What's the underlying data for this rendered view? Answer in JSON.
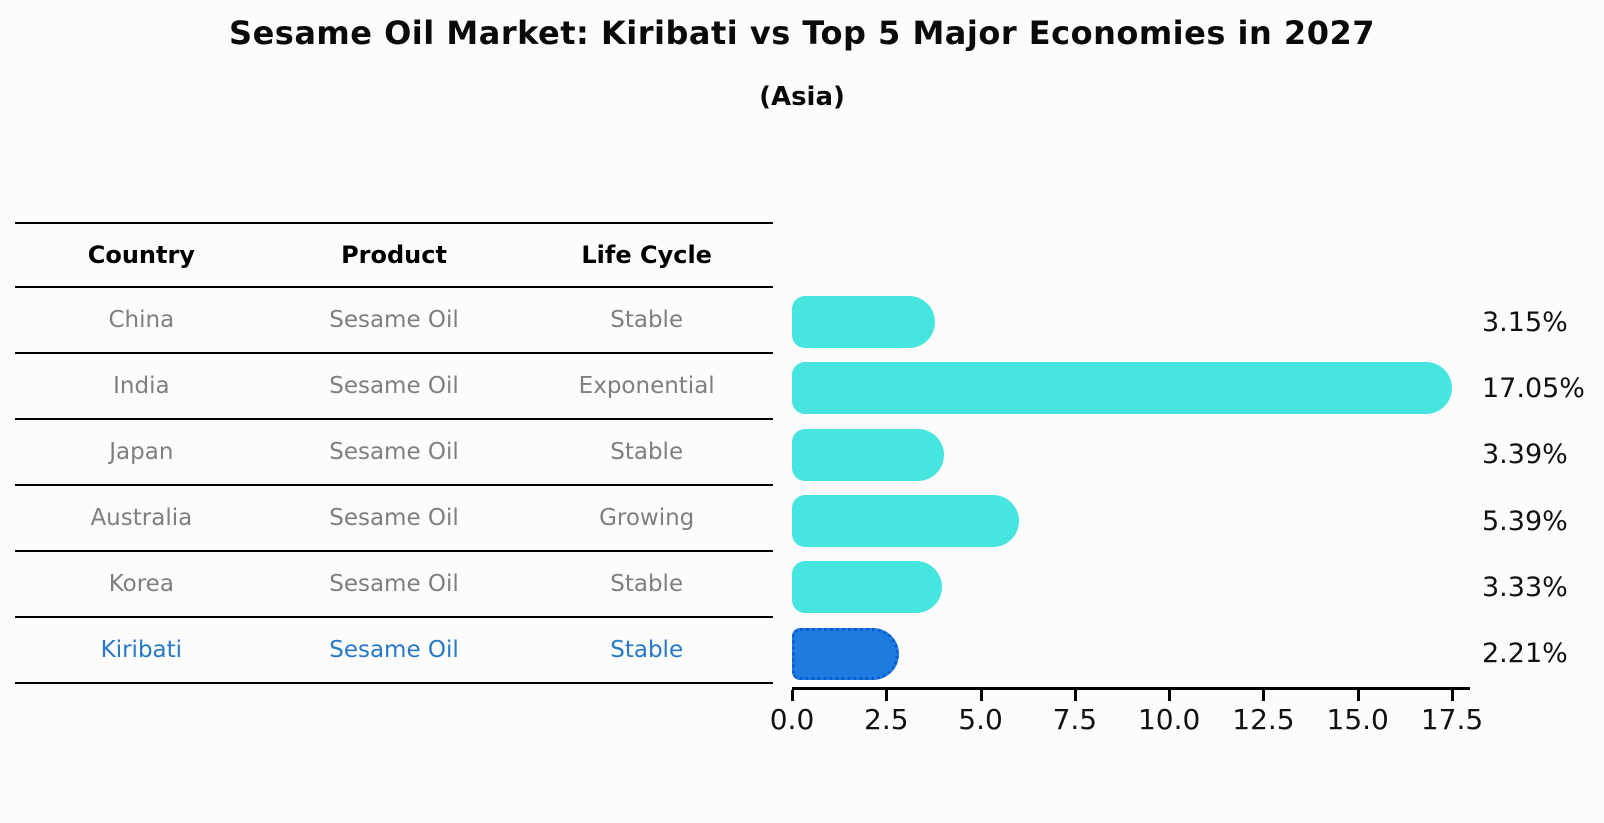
{
  "title": "Sesame Oil Market: Kiribati vs Top 5 Major Economies in 2027",
  "subtitle": "(Asia)",
  "table": {
    "headers": [
      "Country",
      "Product",
      "Life Cycle"
    ],
    "rows": [
      {
        "country": "China",
        "product": "Sesame Oil",
        "life_cycle": "Stable",
        "highlighted": false
      },
      {
        "country": "India",
        "product": "Sesame Oil",
        "life_cycle": "Exponential",
        "highlighted": false
      },
      {
        "country": "Japan",
        "product": "Sesame Oil",
        "life_cycle": "Stable",
        "highlighted": false
      },
      {
        "country": "Australia",
        "product": "Sesame Oil",
        "life_cycle": "Growing",
        "highlighted": false
      },
      {
        "country": "Korea",
        "product": "Sesame Oil",
        "life_cycle": "Stable",
        "highlighted": false
      },
      {
        "country": "Kiribati",
        "product": "Sesame Oil",
        "life_cycle": "Stable",
        "highlighted": true
      }
    ]
  },
  "chart_data": {
    "type": "bar",
    "orientation": "horizontal",
    "title": "Sesame Oil Market: Kiribati vs Top 5 Major Economies in 2027",
    "subtitle": "(Asia)",
    "categories": [
      "China",
      "India",
      "Japan",
      "Australia",
      "Korea",
      "Kiribati"
    ],
    "values": [
      3.15,
      17.05,
      3.39,
      5.39,
      3.33,
      2.21
    ],
    "value_labels": [
      "3.15%",
      "17.05%",
      "3.39%",
      "5.39%",
      "3.33%",
      "2.21%"
    ],
    "x_ticks": [
      "0.0",
      "2.5",
      "5.0",
      "7.5",
      "10.0",
      "12.5",
      "15.0",
      "17.5"
    ],
    "xlim": [
      0,
      17.5
    ],
    "xlabel": "",
    "ylabel": "",
    "grid": false,
    "legend": false,
    "highlight_index": 5,
    "bar_color": "#46e5e0",
    "highlight_bar_color": "#1e7ce0",
    "highlight_border_color": "#0b5ed2"
  },
  "colors": {
    "muted_text": "#7f7f7f",
    "highlight_text": "#2878c9",
    "value_text": "#111111",
    "axis": "#000000"
  }
}
